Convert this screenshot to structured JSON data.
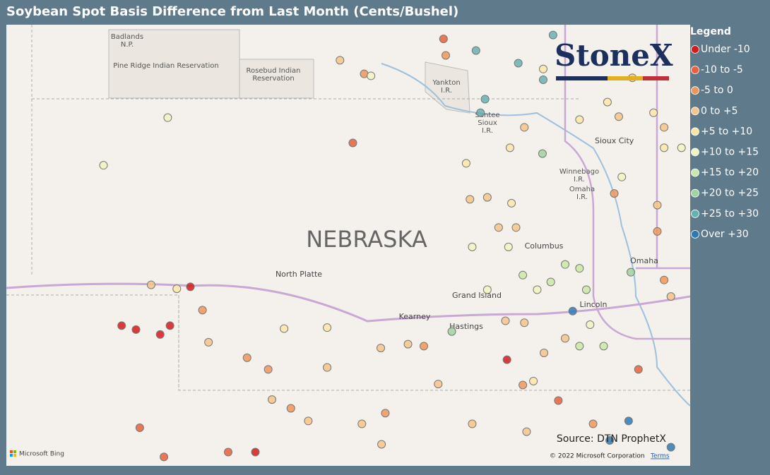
{
  "header": {
    "title": "Soybean Spot Basis Difference from Last Month (Cents/Bushel)"
  },
  "legend": {
    "title": "Legend",
    "items": [
      {
        "label": "Under -10",
        "color": "#d7191c",
        "points": [
          [
            -101.95,
            41.07
          ],
          [
            -102.86,
            40.67
          ],
          [
            -102.67,
            40.63
          ],
          [
            -102.35,
            40.58
          ],
          [
            -102.22,
            40.67
          ],
          [
            -97.76,
            40.32
          ],
          [
            -101.09,
            39.37
          ]
        ]
      },
      {
        "label": "-10 to -5",
        "color": "#e8603c",
        "points": [
          [
            -99.8,
            42.55
          ],
          [
            -98.6,
            43.62
          ],
          [
            -97.08,
            39.9
          ],
          [
            -96.02,
            40.22
          ],
          [
            -101.45,
            39.37
          ],
          [
            -102.62,
            39.62
          ],
          [
            -102.3,
            39.32
          ]
        ]
      },
      {
        "label": "-5 to 0",
        "color": "#f0965a",
        "points": [
          [
            -98.57,
            43.45
          ],
          [
            -99.65,
            43.26
          ],
          [
            -101.79,
            40.83
          ],
          [
            -101.2,
            40.34
          ],
          [
            -100.92,
            40.22
          ],
          [
            -100.62,
            39.82
          ],
          [
            -99.37,
            39.77
          ],
          [
            -98.86,
            40.46
          ],
          [
            -97.55,
            40.06
          ],
          [
            -96.62,
            39.66
          ],
          [
            -95.68,
            41.14
          ],
          [
            -95.77,
            41.64
          ],
          [
            -96.34,
            42.03
          ]
        ]
      },
      {
        "label": "0 to +5",
        "color": "#f6c48a",
        "points": [
          [
            -99.97,
            43.4
          ],
          [
            -102.47,
            41.09
          ],
          [
            -101.71,
            40.5
          ],
          [
            -100.87,
            39.91
          ],
          [
            -100.39,
            39.69
          ],
          [
            -100.14,
            40.24
          ],
          [
            -99.43,
            40.44
          ],
          [
            -99.07,
            40.48
          ],
          [
            -98.67,
            40.07
          ],
          [
            -98.25,
            41.97
          ],
          [
            -98.02,
            41.99
          ],
          [
            -97.87,
            41.68
          ],
          [
            -97.64,
            41.68
          ],
          [
            -97.78,
            40.72
          ],
          [
            -97.53,
            40.7
          ],
          [
            -97.27,
            40.39
          ],
          [
            -96.99,
            40.54
          ],
          [
            -96.28,
            42.82
          ],
          [
            -96.1,
            43.22
          ],
          [
            -95.59,
            40.97
          ],
          [
            -98.22,
            39.66
          ],
          [
            -97.5,
            39.58
          ],
          [
            -99.42,
            39.45
          ],
          [
            -99.68,
            39.66
          ],
          [
            -97.53,
            42.71
          ],
          [
            -95.68,
            42.71
          ],
          [
            -95.77,
            41.91
          ]
        ]
      },
      {
        "label": "+5 to +10",
        "color": "#fbe6a8",
        "points": [
          [
            -100.71,
            40.64
          ],
          [
            -100.14,
            40.65
          ],
          [
            -102.13,
            41.05
          ],
          [
            -97.28,
            43.31
          ],
          [
            -97.72,
            42.5
          ],
          [
            -98.3,
            42.34
          ],
          [
            -97.7,
            41.93
          ],
          [
            -96.8,
            42.79
          ],
          [
            -95.82,
            42.86
          ],
          [
            -96.43,
            42.97
          ],
          [
            -95.68,
            42.5
          ],
          [
            -97.41,
            40.1
          ]
        ]
      },
      {
        "label": "+10 to +15",
        "color": "#eef5c0",
        "points": [
          [
            -99.56,
            43.24
          ],
          [
            -102.25,
            42.81
          ],
          [
            -103.1,
            42.32
          ],
          [
            -98.22,
            41.48
          ],
          [
            -97.74,
            41.48
          ],
          [
            -98.02,
            41.04
          ],
          [
            -97.36,
            41.04
          ],
          [
            -96.66,
            40.68
          ],
          [
            -96.24,
            42.2
          ],
          [
            -95.45,
            42.5
          ]
        ]
      },
      {
        "label": "+15 to +20",
        "color": "#cbe8a8",
        "points": [
          [
            -97.55,
            41.19
          ],
          [
            -97.18,
            41.12
          ],
          [
            -96.99,
            41.3
          ],
          [
            -96.8,
            41.26
          ],
          [
            -96.71,
            41.04
          ],
          [
            -96.48,
            40.46
          ],
          [
            -96.8,
            40.46
          ]
        ]
      },
      {
        "label": "+20 to +25",
        "color": "#9fd3a0",
        "points": [
          [
            -97.29,
            42.44
          ],
          [
            -96.12,
            41.22
          ],
          [
            -98.49,
            40.61
          ]
        ]
      },
      {
        "label": "+25 to +30",
        "color": "#67b0b0",
        "points": [
          [
            -98.17,
            43.5
          ],
          [
            -98.05,
            43.0
          ],
          [
            -98.11,
            42.86
          ],
          [
            -97.61,
            43.37
          ],
          [
            -97.15,
            43.66
          ],
          [
            -97.28,
            43.2
          ]
        ]
      },
      {
        "label": "Over +30",
        "color": "#2c7bb6",
        "points": [
          [
            -96.89,
            40.82
          ],
          [
            -96.4,
            39.49
          ],
          [
            -96.15,
            39.69
          ],
          [
            -95.59,
            39.42
          ]
        ]
      }
    ]
  },
  "map": {
    "labels": {
      "badlands": [
        "Badlands",
        "N.P."
      ],
      "pine_ridge": "Pine Ridge Indian Reservation",
      "rosebud": [
        "Rosebud Indian",
        "Reservation"
      ],
      "yankton": [
        "Yankton",
        "I.R."
      ],
      "santee": [
        "Santee",
        "Sioux",
        "I.R."
      ],
      "sioux_city": "Sioux City",
      "winnebago": [
        "Winnebago",
        "I.R."
      ],
      "omaha_ir": [
        "Omaha",
        "I.R."
      ],
      "state": "NEBRASKA",
      "north_platte": "North Platte",
      "columbus": "Columbus",
      "omaha": "Omaha",
      "grand_island": "Grand Island",
      "kearney": "Kearney",
      "hastings": "Hastings",
      "lincoln": "Lincoln"
    },
    "logo": "StoneX",
    "source": "Source: DTN ProphetX",
    "bing": "Microsoft Bing",
    "copyright": "© 2022 Microsoft Corporation",
    "terms": "Terms"
  }
}
